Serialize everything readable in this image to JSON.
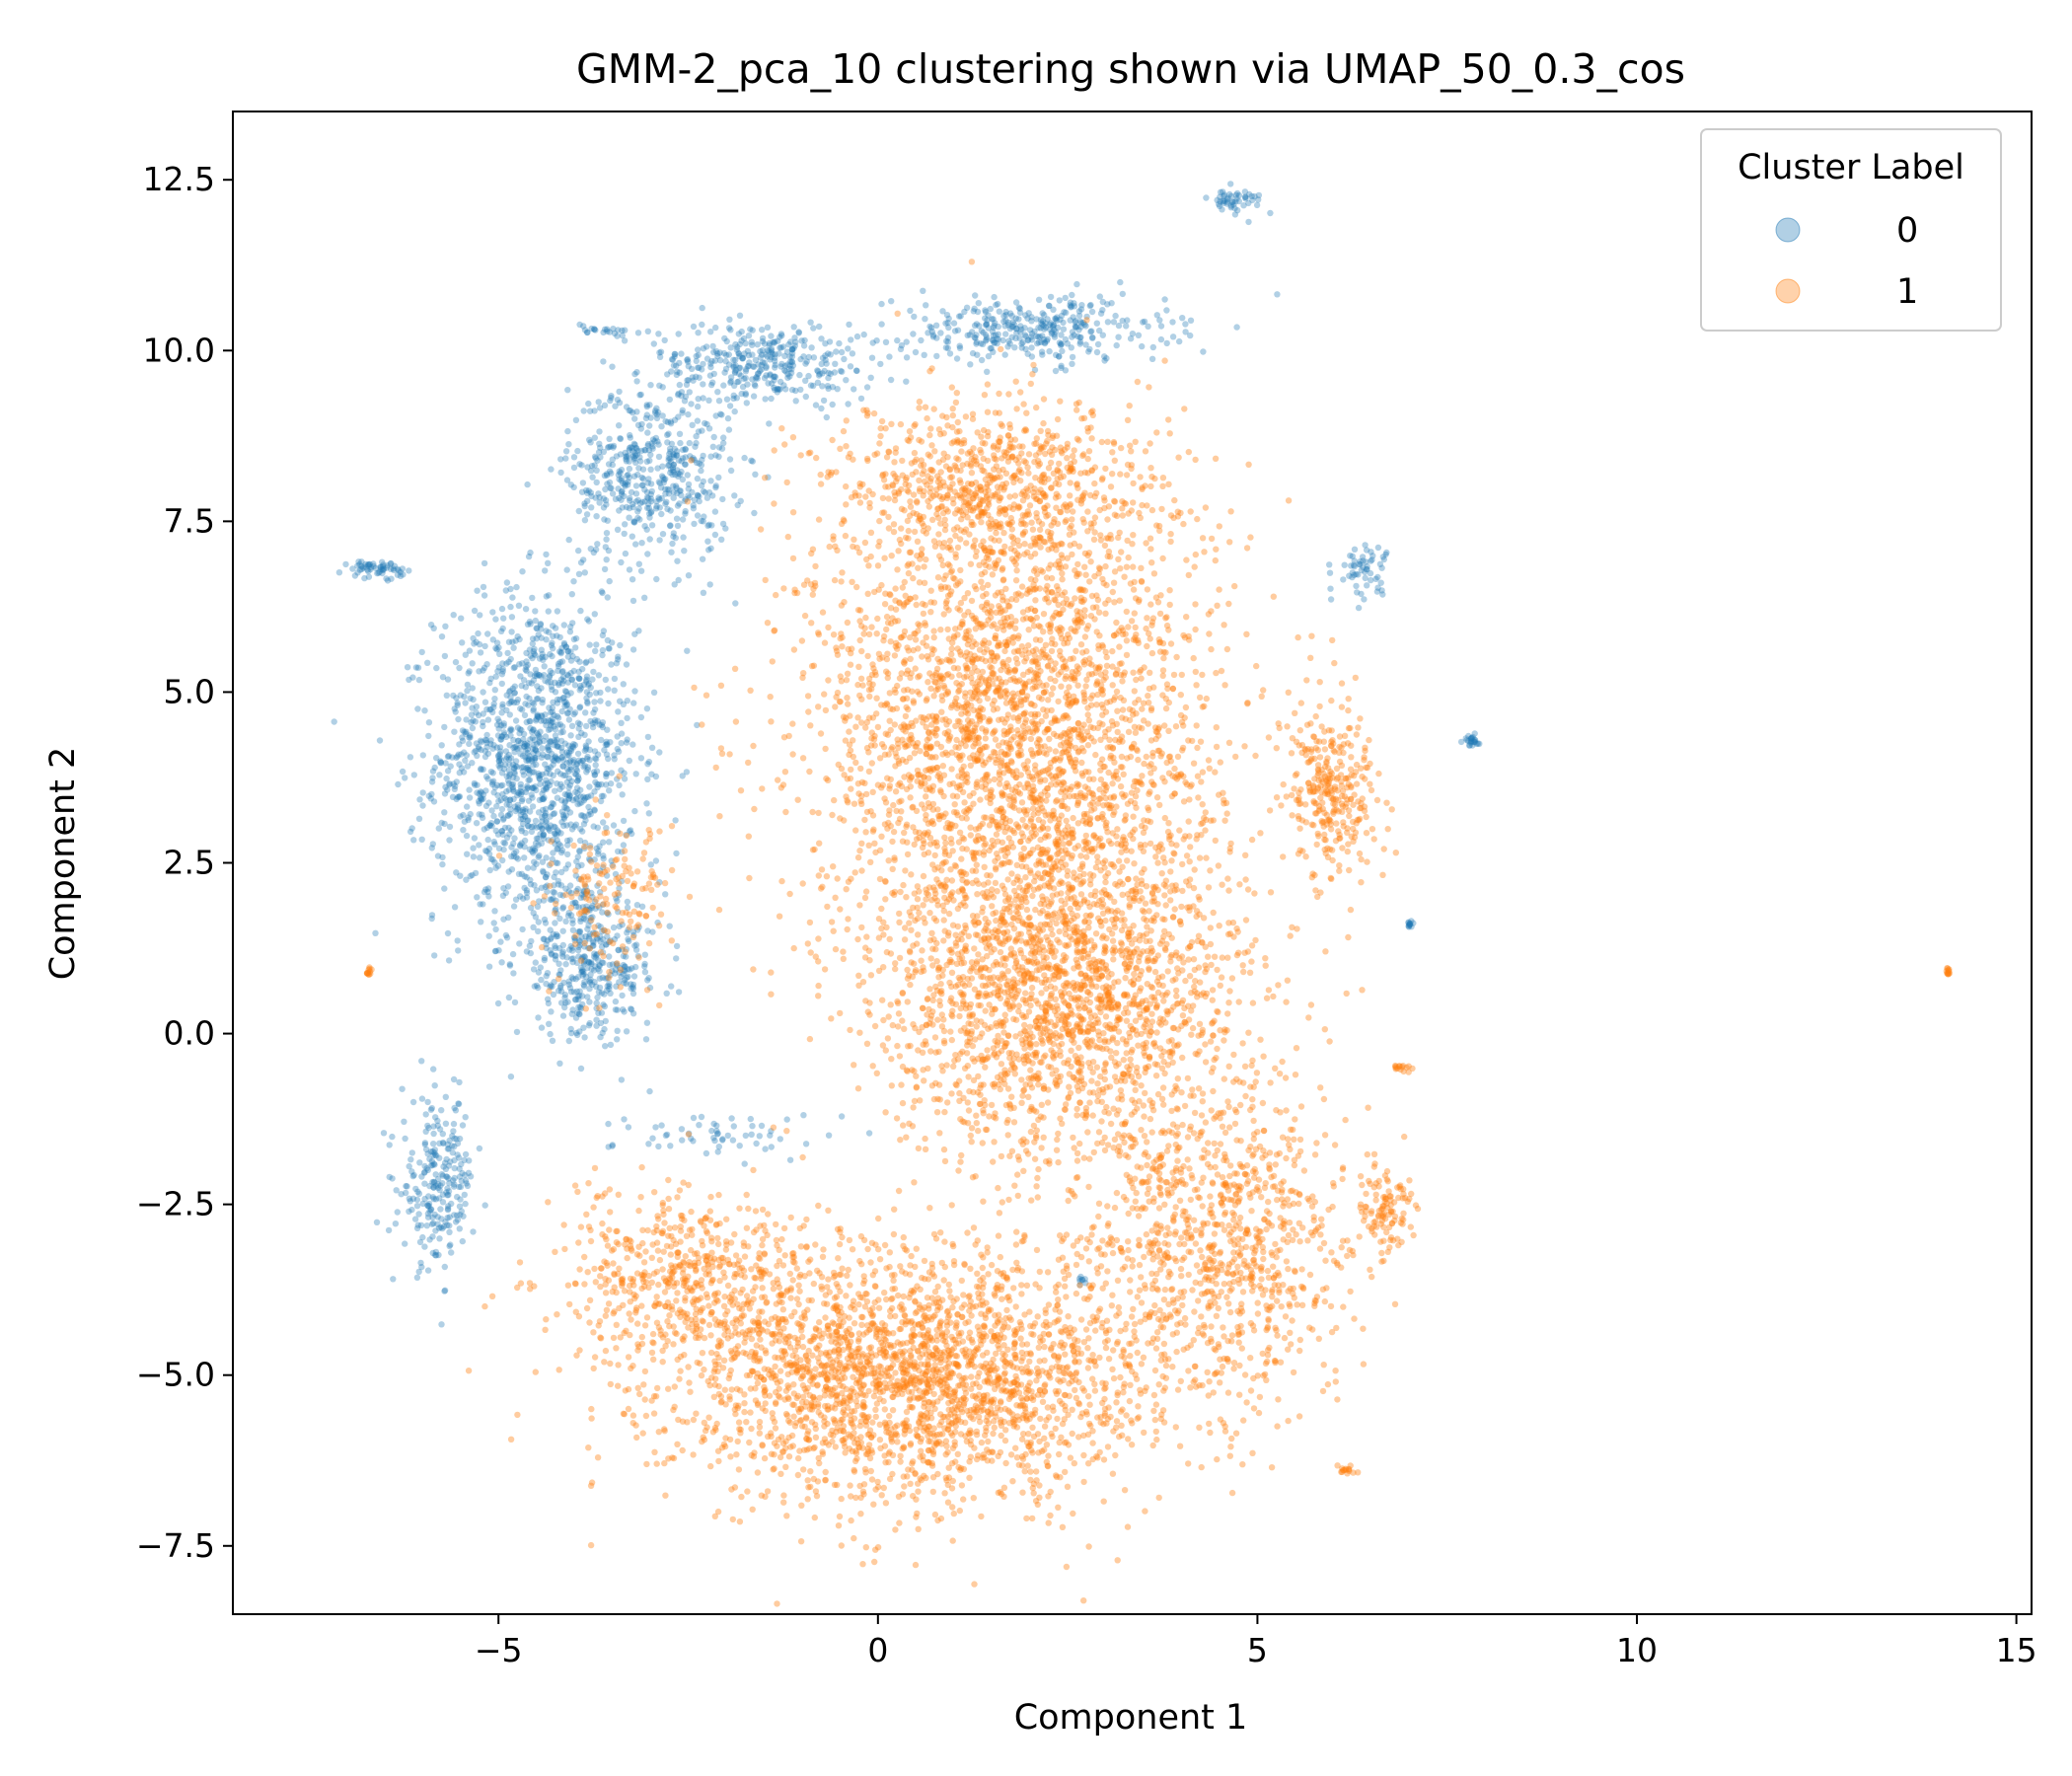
{
  "chart_data": {
    "type": "scatter",
    "title": "GMM-2_pca_10 clustering shown via UMAP_50_0.3_cos",
    "xlabel": "Component 1",
    "ylabel": "Component 2",
    "xlim": [
      -8.5,
      15.2
    ],
    "ylim": [
      -8.5,
      13.5
    ],
    "xticks": [
      -5,
      0,
      5,
      10,
      15
    ],
    "xtick_labels": [
      "−5",
      "0",
      "5",
      "10",
      "15"
    ],
    "yticks": [
      -7.5,
      -5.0,
      -2.5,
      0.0,
      2.5,
      5.0,
      7.5,
      10.0,
      12.5
    ],
    "ytick_labels": [
      "−7.5",
      "−5.0",
      "−2.5",
      "0.0",
      "2.5",
      "5.0",
      "7.5",
      "10.0",
      "12.5"
    ],
    "grid": false,
    "legend": {
      "title": "Cluster Label",
      "placement": "upper-right",
      "entries": [
        "0",
        "1"
      ]
    },
    "series": [
      {
        "name": "0",
        "color": "#1f77b4",
        "alpha": 0.35,
        "regions": [
          {
            "center": [
              -4.5,
              4.0
            ],
            "spread": [
              1.1,
              2.0
            ],
            "count": 1400
          },
          {
            "center": [
              -3.0,
              8.2
            ],
            "spread": [
              0.9,
              1.1
            ],
            "count": 500
          },
          {
            "center": [
              -1.5,
              9.8
            ],
            "spread": [
              1.2,
              0.5
            ],
            "count": 350
          },
          {
            "center": [
              2.0,
              10.3
            ],
            "spread": [
              1.5,
              0.4
            ],
            "count": 350
          },
          {
            "center": [
              -3.8,
              1.0
            ],
            "spread": [
              0.8,
              0.9
            ],
            "count": 400
          },
          {
            "center": [
              -5.8,
              -2.2
            ],
            "spread": [
              0.4,
              1.0
            ],
            "count": 250
          },
          {
            "center": [
              -6.6,
              6.8
            ],
            "spread": [
              0.3,
              0.1
            ],
            "count": 60
          },
          {
            "center": [
              4.7,
              12.2
            ],
            "spread": [
              0.3,
              0.15
            ],
            "count": 50
          },
          {
            "center": [
              6.4,
              6.8
            ],
            "spread": [
              0.3,
              0.3
            ],
            "count": 60
          },
          {
            "center": [
              7.8,
              4.3
            ],
            "spread": [
              0.1,
              0.08
            ],
            "count": 25
          },
          {
            "center": [
              7.0,
              1.6
            ],
            "spread": [
              0.05,
              0.05
            ],
            "count": 12
          },
          {
            "center": [
              -3.5,
              10.3
            ],
            "spread": [
              0.4,
              0.08
            ],
            "count": 25
          },
          {
            "center": [
              -2.0,
              -1.5
            ],
            "spread": [
              1.2,
              0.3
            ],
            "count": 60
          },
          {
            "center": [
              2.7,
              -3.6
            ],
            "spread": [
              0.05,
              0.05
            ],
            "count": 8
          }
        ]
      },
      {
        "name": "1",
        "color": "#ff7f0e",
        "alpha": 0.4,
        "regions": [
          {
            "center": [
              1.8,
              4.5
            ],
            "spread": [
              2.2,
              3.0
            ],
            "count": 3000
          },
          {
            "center": [
              2.5,
              0.5
            ],
            "spread": [
              2.0,
              2.0
            ],
            "count": 2000
          },
          {
            "center": [
              0.5,
              -5.0
            ],
            "spread": [
              2.8,
              1.5
            ],
            "count": 2600
          },
          {
            "center": [
              4.5,
              -3.0
            ],
            "spread": [
              1.5,
              1.8
            ],
            "count": 900
          },
          {
            "center": [
              1.5,
              8.0
            ],
            "spread": [
              1.8,
              1.0
            ],
            "count": 700
          },
          {
            "center": [
              -3.5,
              2.0
            ],
            "spread": [
              0.7,
              1.0
            ],
            "count": 150
          },
          {
            "center": [
              -2.5,
              -3.5
            ],
            "spread": [
              1.5,
              1.0
            ],
            "count": 500
          },
          {
            "center": [
              6.0,
              3.5
            ],
            "spread": [
              0.5,
              1.0
            ],
            "count": 300
          },
          {
            "center": [
              6.7,
              -2.5
            ],
            "spread": [
              0.3,
              0.5
            ],
            "count": 100
          },
          {
            "center": [
              -6.7,
              0.9
            ],
            "spread": [
              0.05,
              0.05
            ],
            "count": 12
          },
          {
            "center": [
              14.1,
              0.9
            ],
            "spread": [
              0.05,
              0.05
            ],
            "count": 12
          },
          {
            "center": [
              6.9,
              -0.5
            ],
            "spread": [
              0.15,
              0.04
            ],
            "count": 15
          },
          {
            "center": [
              6.2,
              -6.4
            ],
            "spread": [
              0.15,
              0.05
            ],
            "count": 15
          }
        ]
      }
    ]
  }
}
